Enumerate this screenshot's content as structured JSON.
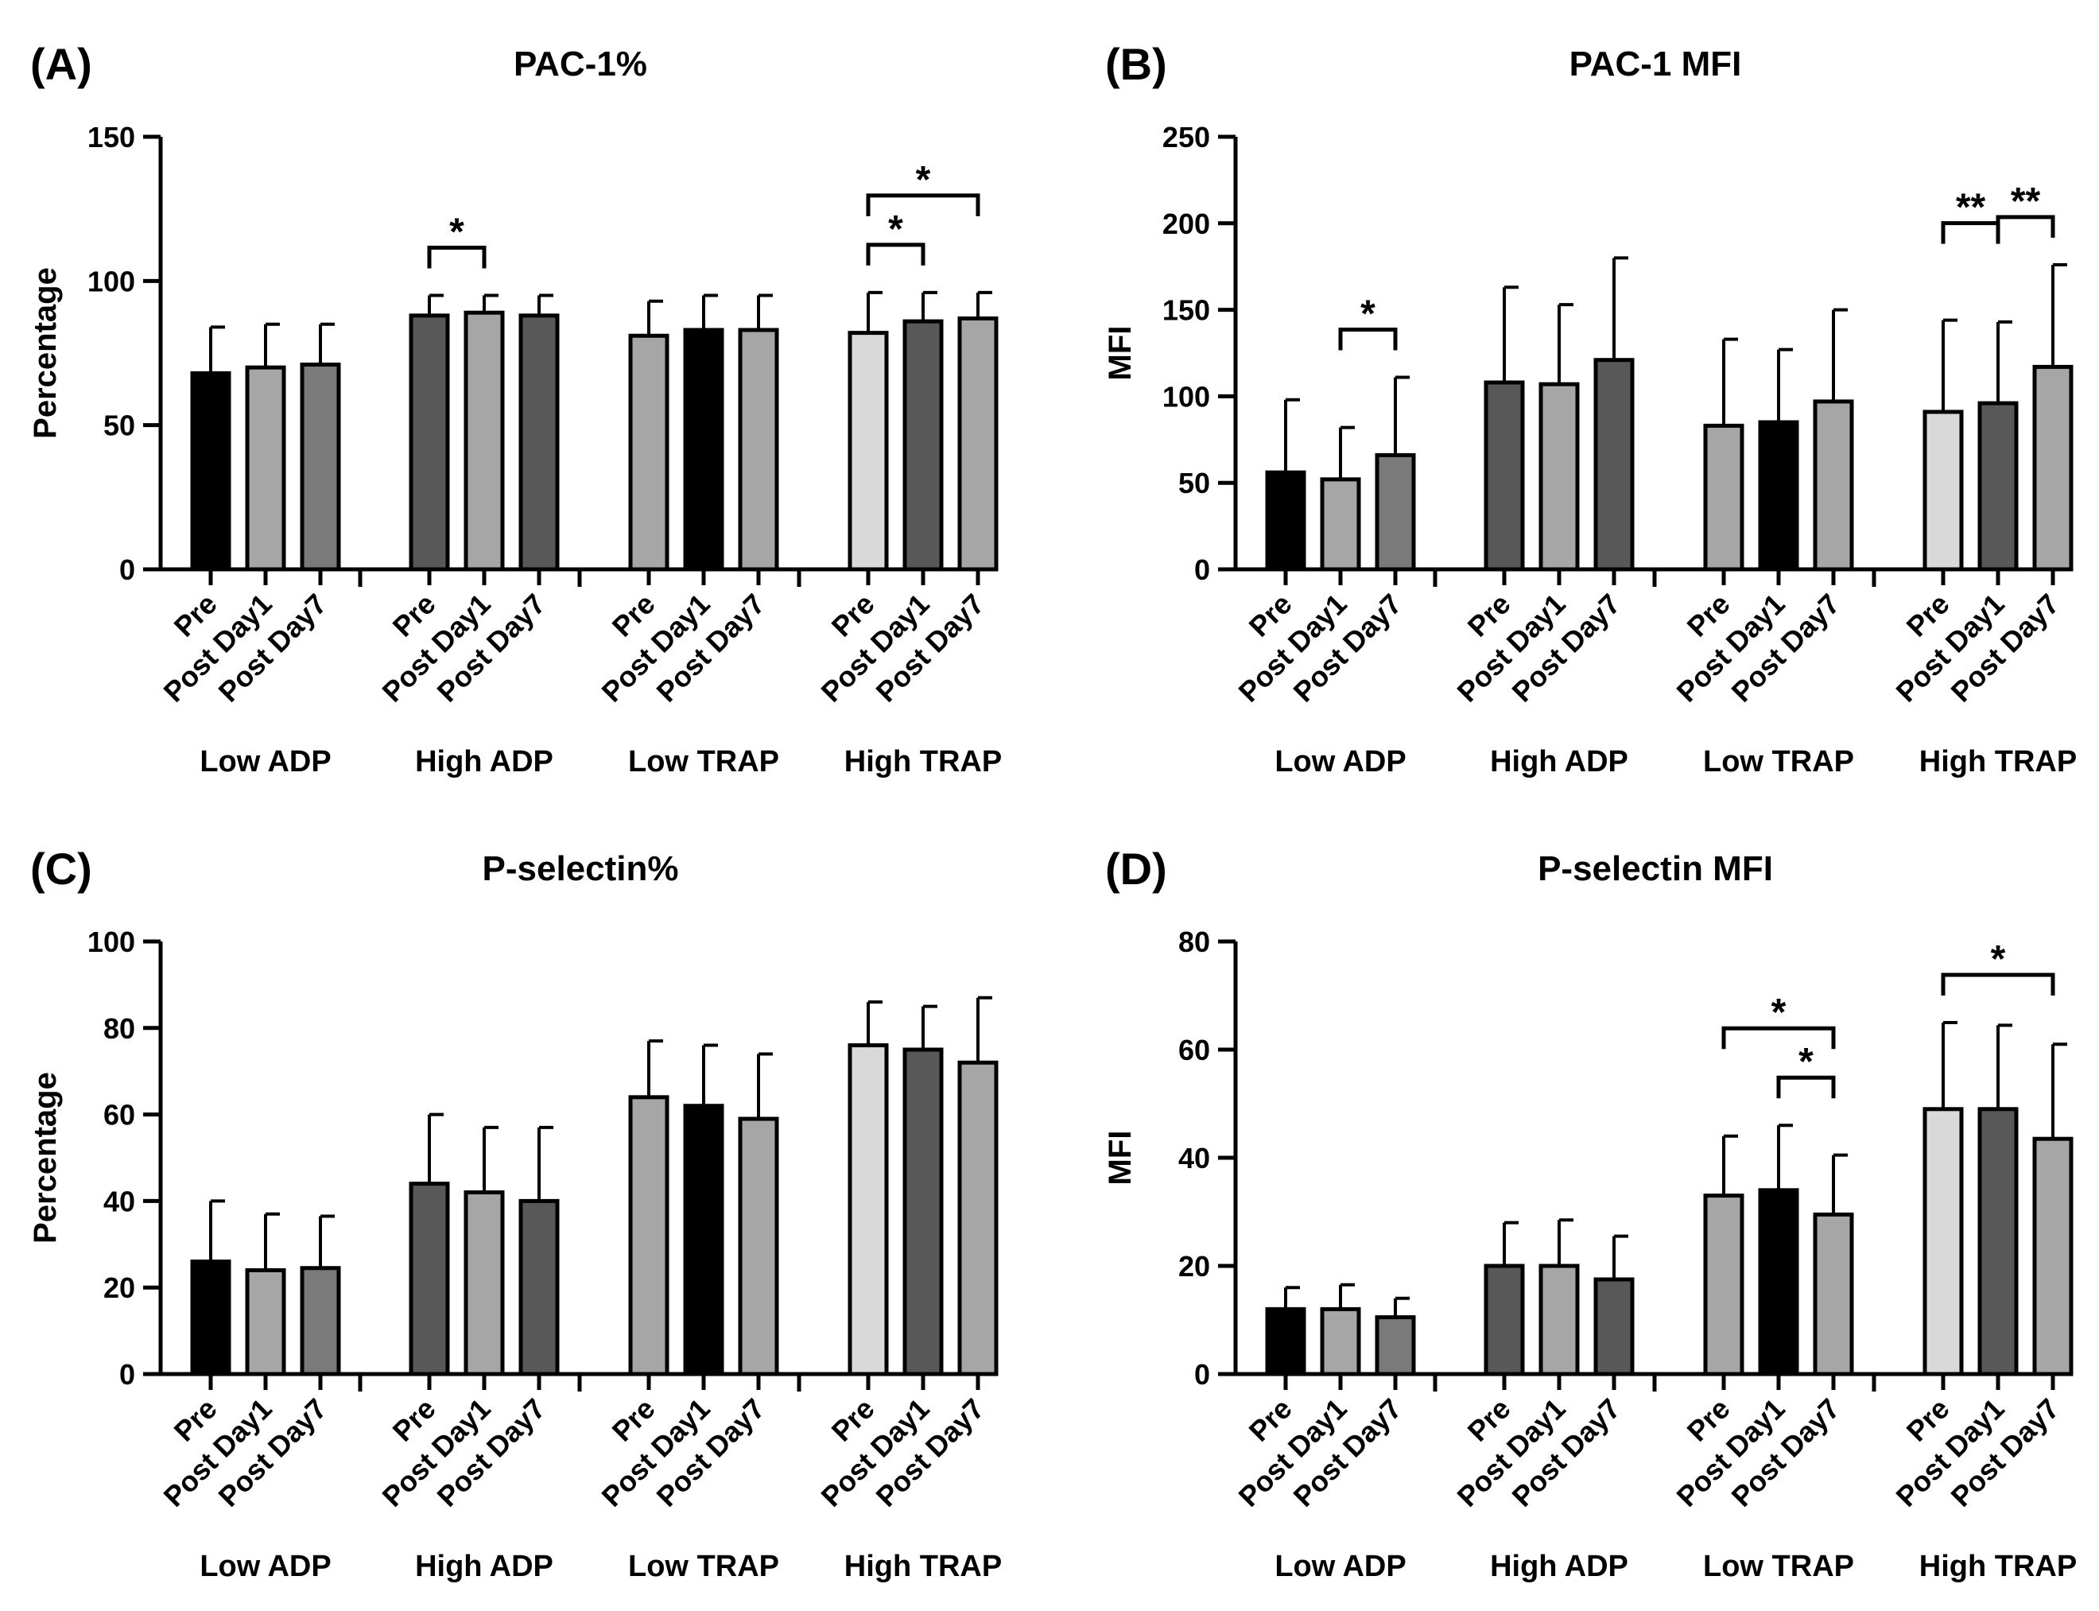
{
  "chart_data": [
    {
      "panel": "(A)",
      "type": "bar",
      "title": "PAC-1%",
      "ylabel": "Percentage",
      "ylim": [
        0,
        150
      ],
      "yticks": [
        0,
        50,
        100,
        150
      ],
      "group_labels": [
        "Low ADP",
        "High ADP",
        "Low TRAP",
        "High TRAP"
      ],
      "categories": [
        "Pre",
        "Post Day1",
        "Post Day7"
      ],
      "values": [
        [
          68,
          70,
          71
        ],
        [
          88,
          89,
          88
        ],
        [
          81,
          83,
          83
        ],
        [
          82,
          86,
          87
        ]
      ],
      "errors": [
        [
          16,
          15,
          14
        ],
        [
          7,
          6,
          7
        ],
        [
          12,
          12,
          12
        ],
        [
          14,
          10,
          9
        ]
      ],
      "significance": [
        {
          "group": 1,
          "from": 0,
          "to": 1,
          "label": "*",
          "level": 0
        },
        {
          "group": 3,
          "from": 0,
          "to": 1,
          "label": "*",
          "level": 0
        },
        {
          "group": 3,
          "from": 0,
          "to": 2,
          "label": "*",
          "level": 1
        }
      ]
    },
    {
      "panel": "(B)",
      "type": "bar",
      "title": "PAC-1 MFI",
      "ylabel": "MFI",
      "ylim": [
        0,
        250
      ],
      "yticks": [
        0,
        50,
        100,
        150,
        200,
        250
      ],
      "group_labels": [
        "Low ADP",
        "High ADP",
        "Low TRAP",
        "High TRAP"
      ],
      "categories": [
        "Pre",
        "Post Day1",
        "Post Day7"
      ],
      "values": [
        [
          56,
          52,
          66
        ],
        [
          108,
          107,
          121
        ],
        [
          83,
          85,
          97
        ],
        [
          91,
          96,
          117
        ]
      ],
      "errors": [
        [
          42,
          30,
          45
        ],
        [
          55,
          46,
          59
        ],
        [
          50,
          42,
          53
        ],
        [
          53,
          47,
          59
        ]
      ],
      "significance": [
        {
          "group": 0,
          "from": 1,
          "to": 2,
          "label": "*",
          "level": 0
        },
        {
          "group": 3,
          "from": 0,
          "to": 1,
          "label": "**",
          "level": 1
        },
        {
          "group": 3,
          "from": 1,
          "to": 2,
          "label": "**",
          "level": 0
        }
      ]
    },
    {
      "panel": "(C)",
      "type": "bar",
      "title": "P-selectin%",
      "ylabel": "Percentage",
      "ylim": [
        0,
        100
      ],
      "yticks": [
        0,
        20,
        40,
        60,
        80,
        100
      ],
      "group_labels": [
        "Low ADP",
        "High ADP",
        "Low TRAP",
        "High TRAP"
      ],
      "categories": [
        "Pre",
        "Post Day1",
        "Post Day7"
      ],
      "values": [
        [
          26,
          24,
          24.5
        ],
        [
          44,
          42,
          40
        ],
        [
          64,
          62,
          59
        ],
        [
          76,
          75,
          72
        ]
      ],
      "errors": [
        [
          14,
          13,
          12
        ],
        [
          16,
          15,
          17
        ],
        [
          13,
          14,
          15
        ],
        [
          10,
          10,
          15
        ]
      ],
      "significance": []
    },
    {
      "panel": "(D)",
      "type": "bar",
      "title": "P-selectin MFI",
      "ylabel": "MFI",
      "ylim": [
        0,
        80
      ],
      "yticks": [
        0,
        20,
        40,
        60,
        80
      ],
      "group_labels": [
        "Low ADP",
        "High ADP",
        "Low TRAP",
        "High TRAP"
      ],
      "categories": [
        "Pre",
        "Post Day1",
        "Post Day7"
      ],
      "values": [
        [
          12,
          12,
          10.5
        ],
        [
          20,
          20,
          17.5
        ],
        [
          33,
          34,
          29.5
        ],
        [
          49,
          49,
          43.5
        ]
      ],
      "errors": [
        [
          4,
          4.5,
          3.5
        ],
        [
          8,
          8.5,
          8
        ],
        [
          11,
          12,
          11
        ],
        [
          16,
          15.5,
          17.5
        ]
      ],
      "significance": [
        {
          "group": 2,
          "from": 1,
          "to": 2,
          "label": "*",
          "level": 0
        },
        {
          "group": 2,
          "from": 0,
          "to": 2,
          "label": "*",
          "level": 1
        },
        {
          "group": 3,
          "from": 0,
          "to": 2,
          "label": "*",
          "level": 0
        }
      ]
    }
  ],
  "colors": {
    "black": "#000000",
    "dark_grey": "#585858",
    "mid_grey": "#7a7a7a",
    "light_grey": "#a6a6a6",
    "very_light_grey": "#d9d9d9",
    "fill_map": [
      [
        "#000000",
        "#a6a6a6",
        "#7a7a7a"
      ],
      [
        "#585858",
        "#a6a6a6",
        "#585858"
      ],
      [
        "#a6a6a6",
        "#000000",
        "#a6a6a6"
      ],
      [
        "#d9d9d9",
        "#585858",
        "#a6a6a6"
      ]
    ]
  }
}
